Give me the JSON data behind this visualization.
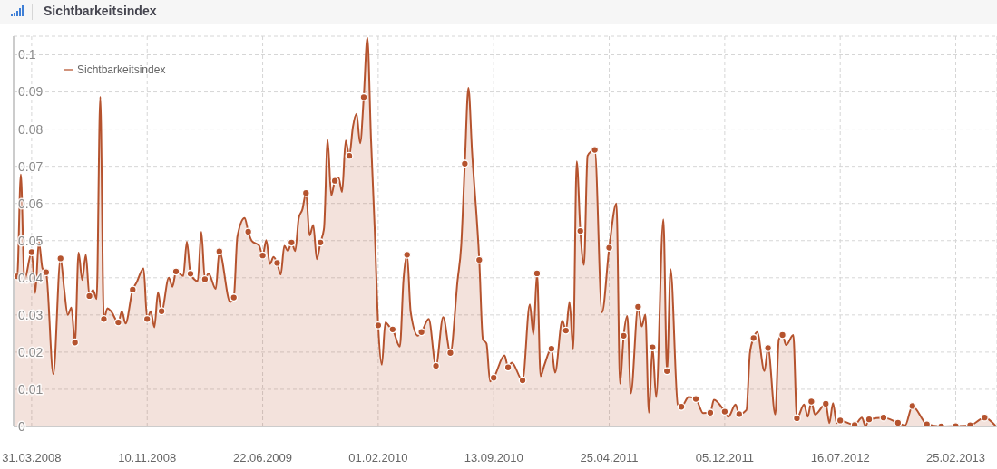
{
  "chart_data": {
    "type": "area",
    "title": "Sichtbarkeitsindex",
    "xlim": [
      "2008-02-25",
      "2013-05-16"
    ],
    "xticks": [
      {
        "value": "2008-03-31",
        "label": "31.03.2008"
      },
      {
        "value": "2008-11-10",
        "label": "10.11.2008"
      },
      {
        "value": "2009-06-22",
        "label": "22.06.2009"
      },
      {
        "value": "2010-02-01",
        "label": "01.02.2010"
      },
      {
        "value": "2010-09-13",
        "label": "13.09.2010"
      },
      {
        "value": "2011-04-25",
        "label": "25.04.2011"
      },
      {
        "value": "2011-12-05",
        "label": "05.12.2011"
      },
      {
        "value": "2012-07-16",
        "label": "16.07.2012"
      },
      {
        "value": "2013-02-25",
        "label": "25.02.2013"
      }
    ],
    "ylim": [
      0,
      0.105
    ],
    "yticks": [
      0,
      0.01,
      0.02,
      0.03,
      0.04,
      0.05,
      0.06,
      0.07,
      0.08,
      0.09,
      0.1
    ],
    "grid": true,
    "legend": "top left",
    "series": [
      {
        "name": "Sichtbarkeitsindex",
        "color": "#b5532e",
        "x": [
          "2008-02-25",
          "2008-03-03",
          "2008-03-10",
          "2008-03-17",
          "2008-03-31",
          "2008-04-07",
          "2008-04-14",
          "2008-04-21",
          "2008-04-28",
          "2008-05-12",
          "2008-05-26",
          "2008-06-02",
          "2008-06-09",
          "2008-06-16",
          "2008-06-23",
          "2008-06-30",
          "2008-07-07",
          "2008-07-14",
          "2008-07-21",
          "2008-07-28",
          "2008-08-04",
          "2008-08-11",
          "2008-08-18",
          "2008-08-25",
          "2008-09-01",
          "2008-09-15",
          "2008-09-22",
          "2008-09-29",
          "2008-10-13",
          "2008-10-20",
          "2008-11-03",
          "2008-11-10",
          "2008-11-17",
          "2008-11-24",
          "2008-12-01",
          "2008-12-08",
          "2008-12-22",
          "2008-12-29",
          "2009-01-05",
          "2009-01-19",
          "2009-01-26",
          "2009-02-02",
          "2009-02-16",
          "2009-02-23",
          "2009-03-02",
          "2009-03-09",
          "2009-03-23",
          "2009-03-30",
          "2009-04-20",
          "2009-04-27",
          "2009-05-04",
          "2009-05-18",
          "2009-05-25",
          "2009-06-01",
          "2009-06-15",
          "2009-06-22",
          "2009-06-29",
          "2009-07-06",
          "2009-07-13",
          "2009-07-20",
          "2009-07-27",
          "2009-08-03",
          "2009-08-10",
          "2009-08-17",
          "2009-08-24",
          "2009-08-31",
          "2009-09-07",
          "2009-09-14",
          "2009-09-21",
          "2009-09-28",
          "2009-10-05",
          "2009-10-12",
          "2009-10-19",
          "2009-10-26",
          "2009-11-02",
          "2009-11-09",
          "2009-11-16",
          "2009-11-23",
          "2009-11-30",
          "2009-12-07",
          "2009-12-14",
          "2009-12-21",
          "2009-12-28",
          "2010-01-04",
          "2010-01-11",
          "2010-01-18",
          "2010-01-25",
          "2010-02-01",
          "2010-02-08",
          "2010-02-15",
          "2010-02-22",
          "2010-03-01",
          "2010-03-15",
          "2010-03-22",
          "2010-03-29",
          "2010-04-05",
          "2010-04-19",
          "2010-04-26",
          "2010-05-10",
          "2010-05-24",
          "2010-06-07",
          "2010-06-21",
          "2010-07-05",
          "2010-07-12",
          "2010-07-19",
          "2010-07-26",
          "2010-08-02",
          "2010-08-16",
          "2010-08-23",
          "2010-08-30",
          "2010-09-06",
          "2010-09-13",
          "2010-10-04",
          "2010-10-11",
          "2010-10-18",
          "2010-11-08",
          "2010-11-22",
          "2010-11-29",
          "2010-12-06",
          "2010-12-13",
          "2010-12-20",
          "2011-01-03",
          "2011-01-10",
          "2011-01-24",
          "2011-01-31",
          "2011-02-07",
          "2011-02-14",
          "2011-02-21",
          "2011-02-28",
          "2011-03-07",
          "2011-03-14",
          "2011-03-21",
          "2011-03-28",
          "2011-04-11",
          "2011-04-25",
          "2011-05-09",
          "2011-05-16",
          "2011-05-23",
          "2011-05-30",
          "2011-06-06",
          "2011-06-20",
          "2011-06-27",
          "2011-07-04",
          "2011-07-11",
          "2011-07-18",
          "2011-07-25",
          "2011-08-08",
          "2011-08-15",
          "2011-08-22",
          "2011-09-05",
          "2011-09-12",
          "2011-09-26",
          "2011-10-10",
          "2011-10-24",
          "2011-11-07",
          "2011-11-14",
          "2011-12-05",
          "2011-12-12",
          "2011-12-26",
          "2012-01-02",
          "2012-01-16",
          "2012-01-23",
          "2012-01-30",
          "2012-02-06",
          "2012-02-20",
          "2012-02-27",
          "2012-03-12",
          "2012-03-19",
          "2012-03-26",
          "2012-04-02",
          "2012-04-16",
          "2012-04-23",
          "2012-05-07",
          "2012-05-14",
          "2012-05-21",
          "2012-05-28",
          "2012-06-18",
          "2012-06-25",
          "2012-07-02",
          "2012-07-09",
          "2012-07-16",
          "2012-08-13",
          "2012-08-27",
          "2012-09-03",
          "2012-09-10",
          "2012-10-08",
          "2012-11-05",
          "2012-11-19",
          "2012-12-03",
          "2012-12-31",
          "2013-01-28",
          "2013-02-25",
          "2013-03-25",
          "2013-04-22",
          "2013-05-13"
        ],
        "values": [
          0.0405,
          0.0404,
          0.0678,
          0.0394,
          0.0469,
          0.0359,
          0.0497,
          0.0425,
          0.0415,
          0.0141,
          0.0452,
          0.037,
          0.03,
          0.032,
          0.0226,
          0.0468,
          0.0394,
          0.0462,
          0.0351,
          0.0367,
          0.0343,
          0.0887,
          0.0289,
          0.0318,
          0.031,
          0.028,
          0.031,
          0.0277,
          0.0368,
          0.0386,
          0.0425,
          0.0289,
          0.031,
          0.0267,
          0.0361,
          0.031,
          0.04,
          0.0376,
          0.0417,
          0.0405,
          0.0497,
          0.0411,
          0.0391,
          0.0524,
          0.0396,
          0.0412,
          0.037,
          0.0471,
          0.0335,
          0.0347,
          0.0511,
          0.0561,
          0.0524,
          0.0499,
          0.0487,
          0.046,
          0.0501,
          0.0437,
          0.0456,
          0.044,
          0.0409,
          0.0486,
          0.0472,
          0.0495,
          0.0472,
          0.0561,
          0.0584,
          0.0628,
          0.0514,
          0.0542,
          0.045,
          0.0495,
          0.0534,
          0.0771,
          0.0622,
          0.0661,
          0.067,
          0.0631,
          0.0769,
          0.0728,
          0.0806,
          0.0841,
          0.0762,
          0.0886,
          0.1046,
          0.0775,
          0.054,
          0.0272,
          0.0166,
          0.028,
          0.027,
          0.0261,
          0.0215,
          0.0394,
          0.0462,
          0.0308,
          0.0244,
          0.0254,
          0.0289,
          0.0163,
          0.0294,
          0.0198,
          0.0394,
          0.0487,
          0.0707,
          0.0911,
          0.074,
          0.0448,
          0.0235,
          0.0223,
          0.0121,
          0.0131,
          0.0191,
          0.0159,
          0.0172,
          0.0124,
          0.0328,
          0.0247,
          0.0412,
          0.0135,
          0.0164,
          0.0209,
          0.0145,
          0.0285,
          0.0258,
          0.0335,
          0.0207,
          0.0713,
          0.0526,
          0.0435,
          0.0728,
          0.074,
          0.0744,
          0.0307,
          0.0481,
          0.06,
          0.0115,
          0.0244,
          0.0297,
          0.0089,
          0.0322,
          0.0269,
          0.0301,
          0.0037,
          0.0213,
          0.0079,
          0.0557,
          0.0149,
          0.0423,
          0.0059,
          0.0053,
          0.0079,
          0.0074,
          0.0036,
          0.0037,
          0.0072,
          0.004,
          0.0026,
          0.0059,
          0.0033,
          0.0044,
          0.0199,
          0.0238,
          0.0254,
          0.0149,
          0.0211,
          0.0032,
          0.0234,
          0.0246,
          0.0219,
          0.0246,
          0.0022,
          0.0059,
          0.0026,
          0.0067,
          0.0032,
          0.0061,
          0.0009,
          0.0063,
          0.0009,
          0.0016,
          0.0004,
          0.0024,
          0.0001,
          0.0019,
          0.0024,
          0.001,
          0.0003,
          0.0055,
          0.0006,
          0,
          0.0001,
          0.0003,
          0.0024,
          0.0002
        ]
      },
      {
        "type": "scatter",
        "color": "#b5532e",
        "marker": "circle",
        "x": [
          "2008-03-03",
          "2008-03-31",
          "2008-04-28",
          "2008-05-26",
          "2008-06-23",
          "2008-07-21",
          "2008-08-18",
          "2008-09-15",
          "2008-10-13",
          "2008-11-10",
          "2008-12-08",
          "2009-01-05",
          "2009-02-02",
          "2009-03-02",
          "2009-03-30",
          "2009-04-27",
          "2009-05-25",
          "2009-06-22",
          "2009-07-20",
          "2009-08-17",
          "2009-09-14",
          "2009-10-12",
          "2009-11-09",
          "2009-12-07",
          "2010-01-04",
          "2010-02-01",
          "2010-03-01",
          "2010-03-29",
          "2010-04-26",
          "2010-05-24",
          "2010-06-21",
          "2010-07-19",
          "2010-08-16",
          "2010-09-13",
          "2010-10-11",
          "2010-11-08",
          "2010-12-06",
          "2011-01-03",
          "2011-01-31",
          "2011-02-28",
          "2011-03-28",
          "2011-04-25",
          "2011-05-23",
          "2011-06-20",
          "2011-07-18",
          "2011-08-15",
          "2011-09-12",
          "2011-10-10",
          "2011-11-07",
          "2011-12-05",
          "2012-01-02",
          "2012-01-30",
          "2012-02-27",
          "2012-03-26",
          "2012-04-23",
          "2012-05-21",
          "2012-06-18",
          "2012-07-16",
          "2012-08-13",
          "2012-09-10",
          "2012-10-08",
          "2012-11-05",
          "2012-12-03",
          "2012-12-31",
          "2013-01-28",
          "2013-02-25",
          "2013-03-25",
          "2013-04-22"
        ],
        "values": [
          0.0404,
          0.0469,
          0.0415,
          0.0452,
          0.0226,
          0.0351,
          0.0289,
          0.028,
          0.0368,
          0.0289,
          0.031,
          0.0417,
          0.0411,
          0.0396,
          0.0471,
          0.0347,
          0.0524,
          0.046,
          0.044,
          0.0495,
          0.0628,
          0.0495,
          0.0661,
          0.0728,
          0.0886,
          0.0272,
          0.0261,
          0.0462,
          0.0254,
          0.0163,
          0.0198,
          0.0707,
          0.0448,
          0.0131,
          0.0159,
          0.0124,
          0.0412,
          0.0209,
          0.0258,
          0.0526,
          0.0744,
          0.0481,
          0.0244,
          0.0322,
          0.0213,
          0.0149,
          0.0053,
          0.0074,
          0.0037,
          0.004,
          0.0033,
          0.0238,
          0.0211,
          0.0246,
          0.0022,
          0.0067,
          0.0061,
          0.0016,
          0.0004,
          0.0019,
          0.0024,
          0.001,
          0.0055,
          0.0006,
          0,
          0.0001,
          0.0003,
          0.0024
        ]
      }
    ]
  }
}
